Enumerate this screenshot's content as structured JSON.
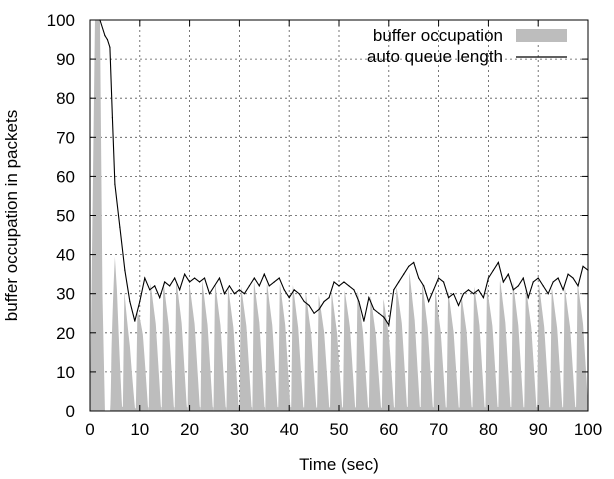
{
  "chart_data": {
    "type": "area",
    "title": "",
    "xlabel": "Time (sec)",
    "ylabel": "buffer occupation in packets",
    "xlim": [
      0,
      100
    ],
    "ylim": [
      0,
      100
    ],
    "xticks": [
      "0",
      "10",
      "20",
      "30",
      "40",
      "50",
      "60",
      "70",
      "80",
      "90",
      "100"
    ],
    "yticks": [
      "0",
      "10",
      "20",
      "30",
      "40",
      "50",
      "60",
      "70",
      "80",
      "90",
      "100"
    ],
    "grid": true,
    "legend_position": "top-right",
    "colors": {
      "buffer": "#bdbdbd",
      "queue": "#000000"
    },
    "series": [
      {
        "name": "buffer occupation",
        "style": "filled-area",
        "envelope_x": [
          0,
          1,
          1.5,
          2,
          2.5,
          3,
          4,
          5,
          6,
          7,
          8,
          9,
          10,
          12,
          14,
          16,
          18,
          20,
          22,
          24,
          26,
          28,
          30,
          32,
          34,
          36,
          38,
          40,
          42,
          44,
          46,
          48,
          50,
          52,
          54,
          56,
          58,
          60,
          62,
          64,
          66,
          68,
          70,
          72,
          74,
          76,
          78,
          80,
          82,
          84,
          86,
          88,
          90,
          92,
          94,
          96,
          98,
          100
        ],
        "envelope_y": [
          0,
          100,
          100,
          100,
          30,
          0,
          0,
          50,
          42,
          30,
          25,
          22,
          28,
          33,
          34,
          33,
          34,
          33,
          34,
          33,
          33,
          32,
          32,
          33,
          34,
          33,
          33,
          33,
          32,
          30,
          30,
          31,
          30,
          32,
          31,
          30,
          29,
          29,
          33,
          36,
          34,
          32,
          31,
          31,
          30,
          31,
          33,
          32,
          34,
          34,
          33,
          32,
          33,
          32,
          32,
          32,
          33,
          34
        ],
        "oscillation_period_sec": 2.6
      },
      {
        "name": "auto queue length",
        "style": "line",
        "x": [
          2,
          3,
          3.5,
          4,
          4.5,
          5,
          6,
          7,
          8,
          9,
          10,
          11,
          12,
          13,
          14,
          15,
          16,
          17,
          18,
          19,
          20,
          21,
          22,
          23,
          24,
          25,
          26,
          27,
          28,
          29,
          30,
          31,
          32,
          33,
          34,
          35,
          36,
          37,
          38,
          39,
          40,
          41,
          42,
          43,
          44,
          45,
          46,
          47,
          48,
          49,
          50,
          51,
          52,
          53,
          54,
          55,
          56,
          57,
          58,
          59,
          60,
          61,
          62,
          63,
          64,
          65,
          66,
          67,
          68,
          69,
          70,
          71,
          72,
          73,
          74,
          75,
          76,
          77,
          78,
          79,
          80,
          81,
          82,
          83,
          84,
          85,
          86,
          87,
          88,
          89,
          90,
          91,
          92,
          93,
          94,
          95,
          96,
          97,
          98,
          99,
          100
        ],
        "y": [
          100,
          96,
          95,
          93,
          75,
          58,
          47,
          36,
          28,
          23,
          28,
          34,
          31,
          32,
          29,
          33,
          32,
          34,
          31,
          35,
          33,
          34,
          33,
          34,
          30,
          32,
          34,
          30,
          32,
          30,
          31,
          30,
          32,
          34,
          32,
          35,
          32,
          33,
          34,
          31,
          29,
          31,
          30,
          28,
          27,
          25,
          26,
          28,
          29,
          33,
          32,
          33,
          32,
          31,
          28,
          23,
          29,
          26,
          25,
          24,
          22,
          31,
          33,
          35,
          37,
          38,
          34,
          32,
          28,
          31,
          34,
          33,
          29,
          30,
          27,
          30,
          31,
          30,
          31,
          29,
          34,
          36,
          38,
          33,
          35,
          31,
          32,
          34,
          29,
          33,
          34,
          32,
          30,
          33,
          34,
          31,
          35,
          34,
          32,
          37,
          36
        ]
      }
    ]
  }
}
